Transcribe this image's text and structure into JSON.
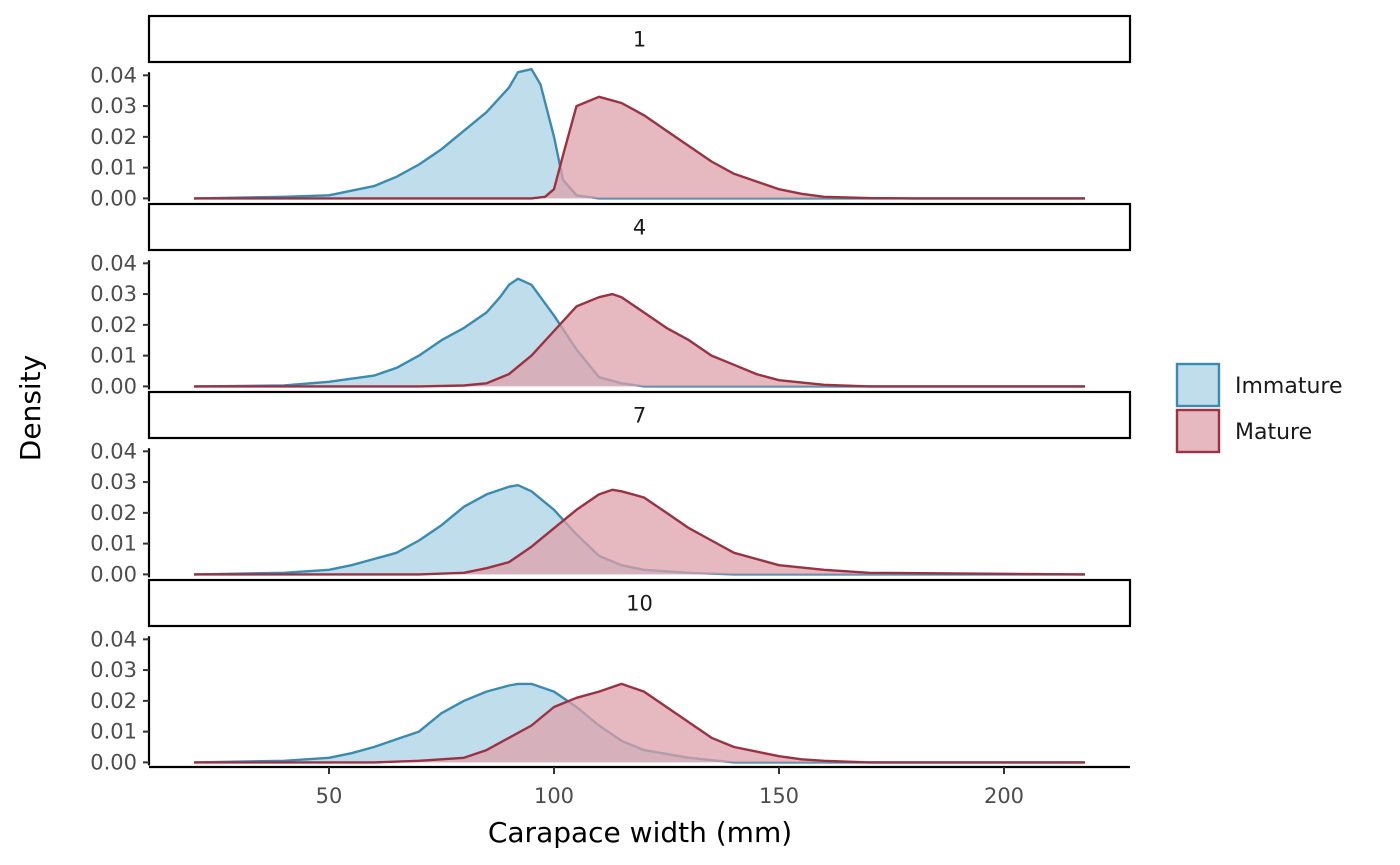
{
  "chart_data": {
    "type": "area",
    "facet_by": "panel",
    "xlabel": "Carapace width (mm)",
    "ylabel": "Density",
    "xlim": [
      10,
      228
    ],
    "ylim": [
      -0.0015,
      0.044
    ],
    "x_ticks": [
      "50",
      "100",
      "150",
      "200"
    ],
    "y_ticks": [
      "0.00",
      "0.01",
      "0.02",
      "0.03",
      "0.04"
    ],
    "legend": {
      "position": "right",
      "entries": [
        "Immature",
        "Mature"
      ]
    },
    "colors": {
      "Immature": {
        "line": "#3A8BB2",
        "fill": "#A9D2E4"
      },
      "Mature": {
        "line": "#993344",
        "fill": "#DDA0AA"
      }
    },
    "panels": [
      {
        "label": "1",
        "series": [
          {
            "name": "Immature",
            "x": [
              20,
              40,
              50,
              55,
              60,
              65,
              70,
              75,
              80,
              85,
              90,
              92,
              95,
              97,
              100,
              102,
              105,
              110,
              120,
              218
            ],
            "y": [
              0,
              0.0005,
              0.001,
              0.0025,
              0.004,
              0.007,
              0.011,
              0.016,
              0.022,
              0.028,
              0.036,
              0.041,
              0.042,
              0.037,
              0.02,
              0.006,
              0.001,
              0,
              0,
              0
            ]
          },
          {
            "name": "Mature",
            "x": [
              20,
              95,
              98,
              100,
              102,
              105,
              110,
              115,
              120,
              125,
              130,
              135,
              140,
              145,
              150,
              155,
              160,
              170,
              180,
              218
            ],
            "y": [
              0,
              0,
              0.0005,
              0.003,
              0.014,
              0.03,
              0.033,
              0.031,
              0.027,
              0.022,
              0.017,
              0.012,
              0.008,
              0.0055,
              0.003,
              0.0015,
              0.0005,
              0.0001,
              0,
              0
            ]
          }
        ]
      },
      {
        "label": "4",
        "series": [
          {
            "name": "Immature",
            "x": [
              20,
              40,
              50,
              55,
              60,
              65,
              70,
              75,
              80,
              85,
              88,
              90,
              92,
              95,
              100,
              105,
              110,
              115,
              120,
              218
            ],
            "y": [
              0,
              0.0003,
              0.0015,
              0.0025,
              0.0035,
              0.006,
              0.01,
              0.015,
              0.019,
              0.024,
              0.029,
              0.033,
              0.035,
              0.033,
              0.023,
              0.012,
              0.003,
              0.001,
              0,
              0
            ]
          },
          {
            "name": "Mature",
            "x": [
              20,
              70,
              80,
              85,
              90,
              95,
              100,
              105,
              110,
              113,
              115,
              120,
              125,
              130,
              135,
              140,
              145,
              150,
              160,
              170,
              218
            ],
            "y": [
              0,
              0,
              0.0003,
              0.001,
              0.004,
              0.01,
              0.018,
              0.026,
              0.029,
              0.03,
              0.029,
              0.024,
              0.019,
              0.015,
              0.01,
              0.007,
              0.004,
              0.002,
              0.0005,
              0,
              0
            ]
          }
        ]
      },
      {
        "label": "7",
        "series": [
          {
            "name": "Immature",
            "x": [
              20,
              40,
              50,
              55,
              60,
              65,
              70,
              75,
              80,
              85,
              90,
              92,
              95,
              100,
              105,
              110,
              115,
              120,
              130,
              140,
              218
            ],
            "y": [
              0,
              0.0005,
              0.0015,
              0.003,
              0.005,
              0.007,
              0.011,
              0.016,
              0.022,
              0.026,
              0.0285,
              0.029,
              0.027,
              0.021,
              0.013,
              0.006,
              0.003,
              0.0015,
              0.0005,
              0,
              0
            ]
          },
          {
            "name": "Mature",
            "x": [
              20,
              70,
              80,
              85,
              90,
              95,
              100,
              105,
              110,
              113,
              115,
              120,
              125,
              130,
              135,
              140,
              145,
              150,
              160,
              170,
              218
            ],
            "y": [
              0,
              0,
              0.0005,
              0.002,
              0.004,
              0.009,
              0.015,
              0.021,
              0.026,
              0.0275,
              0.027,
              0.025,
              0.02,
              0.015,
              0.011,
              0.007,
              0.005,
              0.003,
              0.0015,
              0.0005,
              0
            ]
          }
        ]
      },
      {
        "label": "10",
        "series": [
          {
            "name": "Immature",
            "x": [
              20,
              40,
              50,
              55,
              60,
              65,
              70,
              75,
              80,
              85,
              90,
              92,
              95,
              100,
              105,
              110,
              115,
              120,
              130,
              140,
              218
            ],
            "y": [
              0,
              0.0005,
              0.0015,
              0.003,
              0.005,
              0.0075,
              0.01,
              0.016,
              0.02,
              0.023,
              0.025,
              0.0255,
              0.0255,
              0.023,
              0.018,
              0.012,
              0.007,
              0.004,
              0.0015,
              0,
              0
            ]
          },
          {
            "name": "Mature",
            "x": [
              20,
              60,
              70,
              80,
              85,
              90,
              95,
              100,
              105,
              110,
              115,
              120,
              125,
              130,
              135,
              140,
              145,
              150,
              155,
              160,
              170,
              218
            ],
            "y": [
              0,
              0,
              0.0005,
              0.0015,
              0.004,
              0.008,
              0.012,
              0.018,
              0.021,
              0.023,
              0.0255,
              0.023,
              0.018,
              0.013,
              0.008,
              0.005,
              0.0035,
              0.002,
              0.001,
              0.0005,
              0,
              0
            ]
          }
        ]
      }
    ]
  }
}
